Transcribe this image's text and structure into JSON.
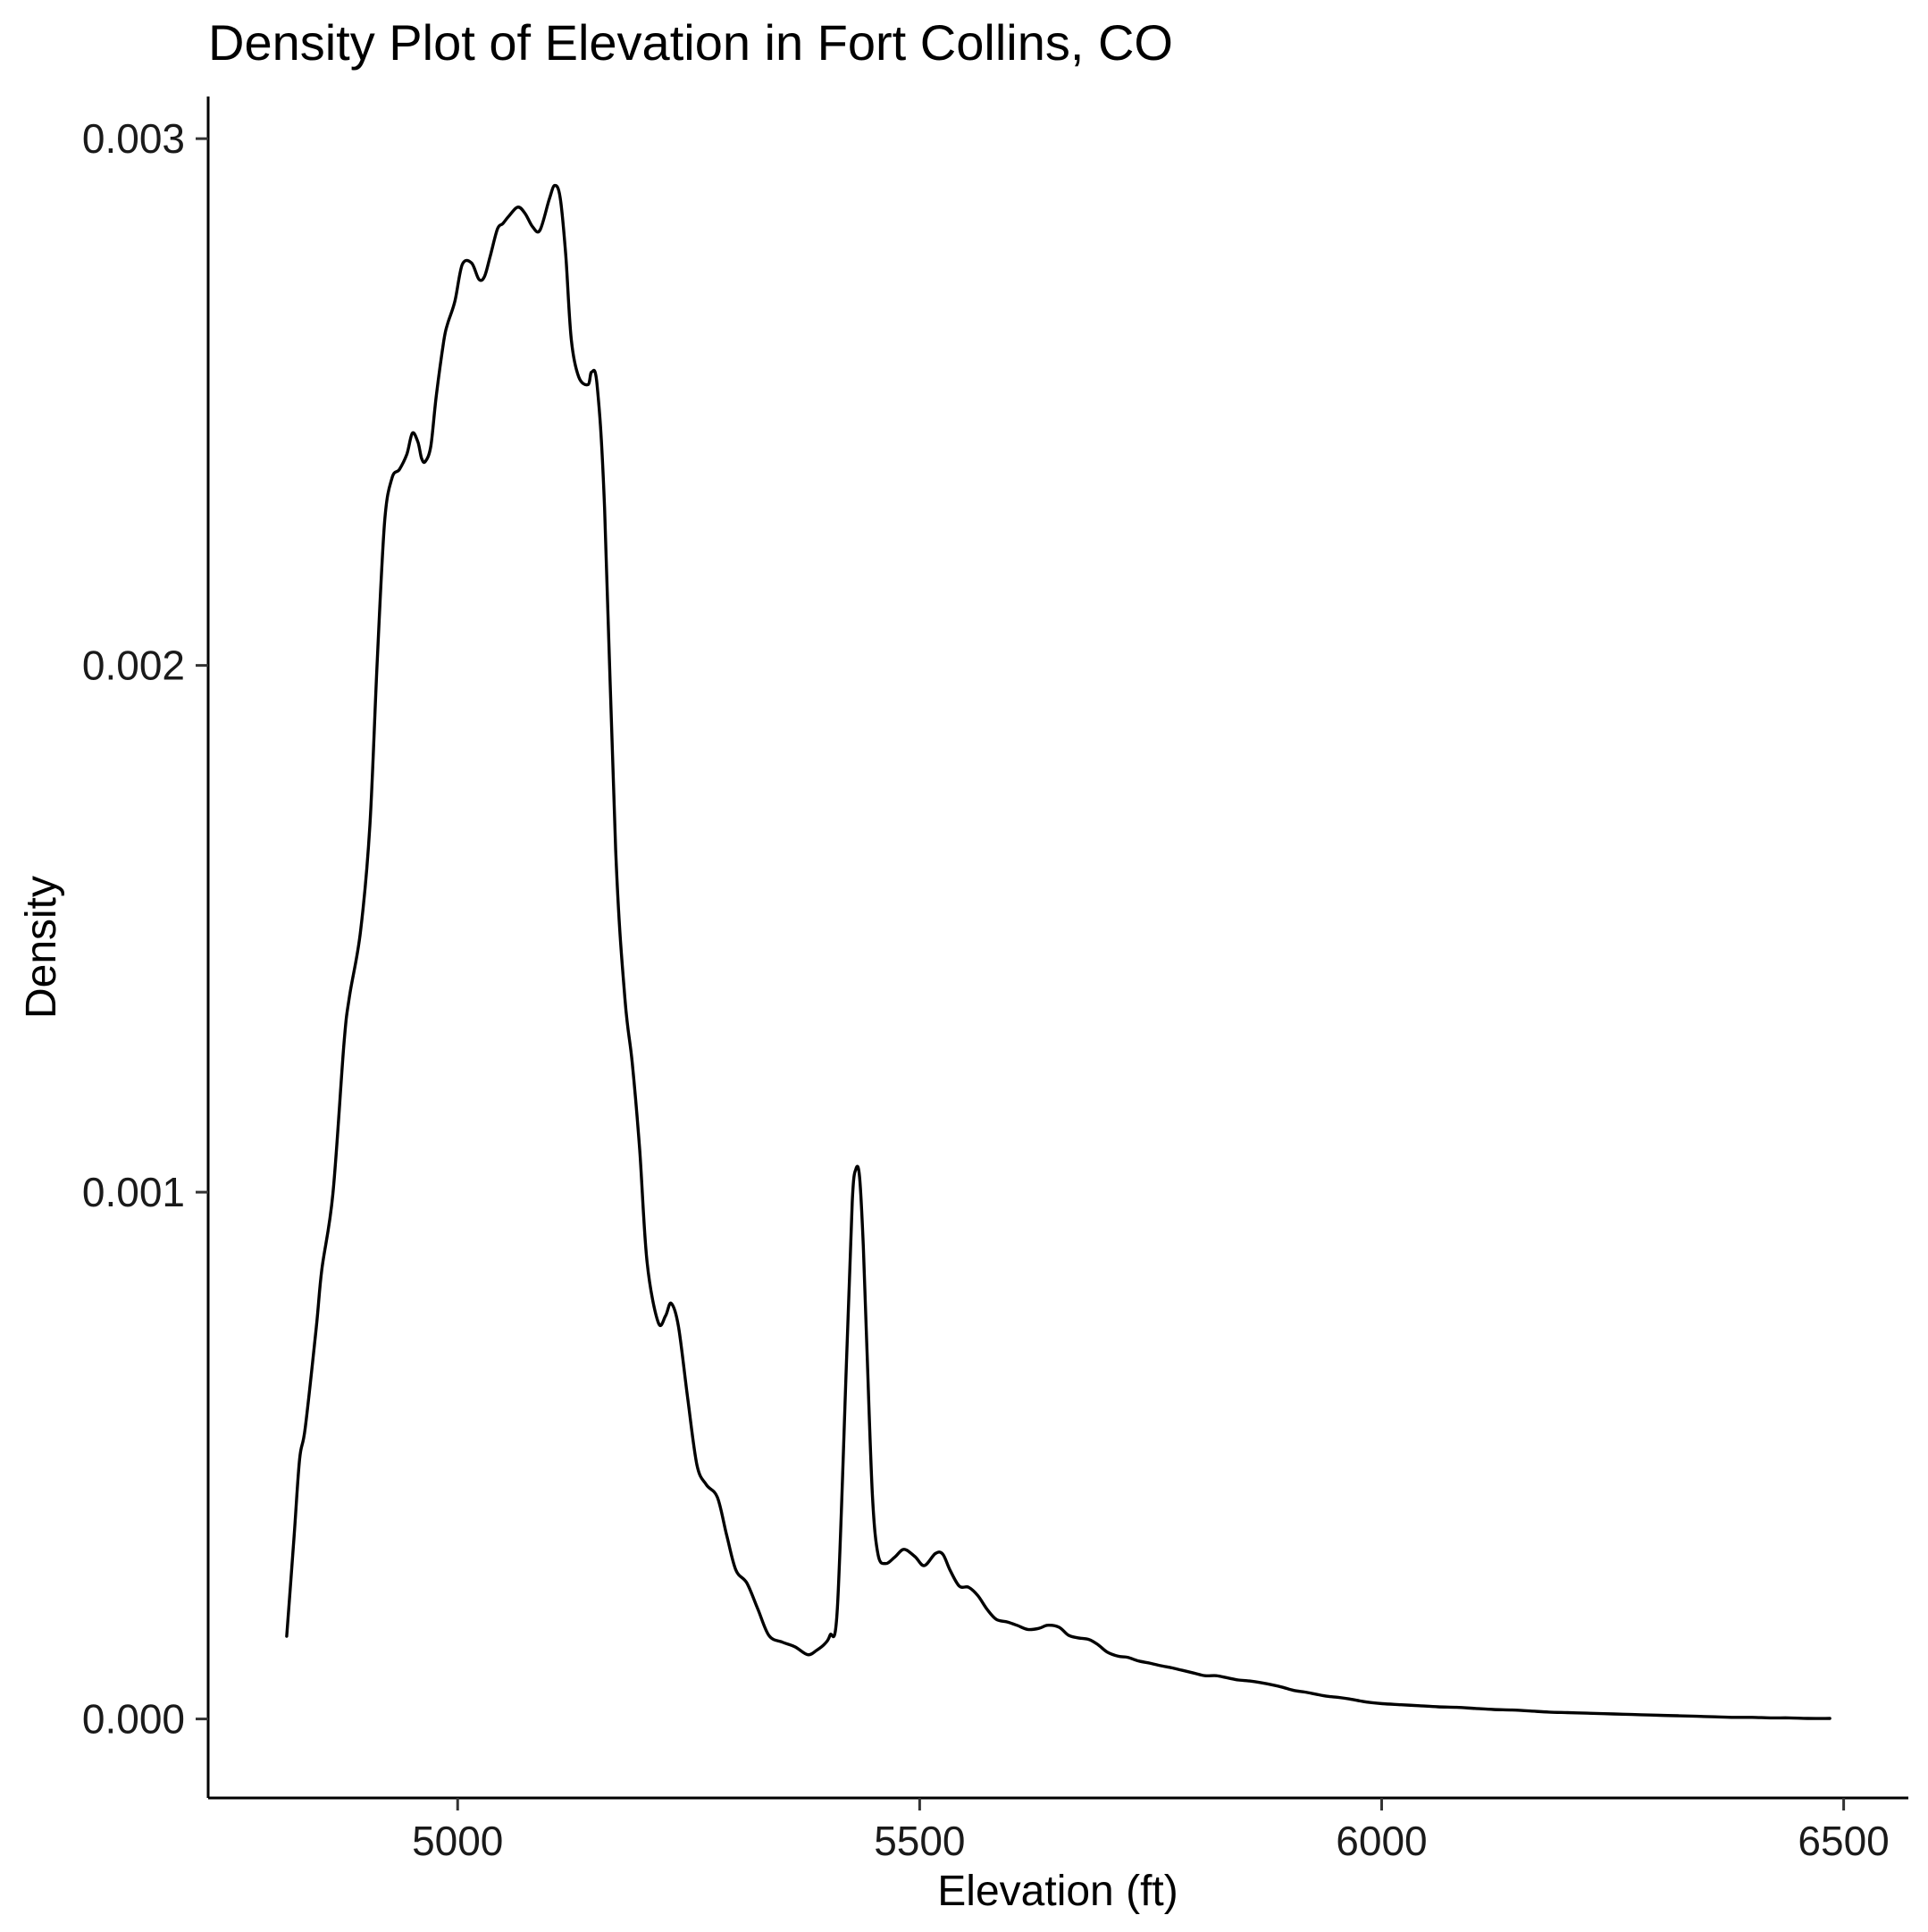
{
  "chart_data": {
    "type": "line",
    "title": "Density Plot of Elevation in Fort Collins, CO",
    "xlabel": "Elevation (ft)",
    "ylabel": "Density",
    "xlim": [
      4730,
      6570
    ],
    "ylim": [
      -0.00015,
      0.00308
    ],
    "x_ticks": [
      5000,
      5500,
      6000,
      6500
    ],
    "x_tick_labels": [
      "5000",
      "5500",
      "6000",
      "6500"
    ],
    "y_ticks": [
      0,
      0.001,
      0.002,
      0.003
    ],
    "y_tick_labels": [
      "0.000",
      "0.001",
      "0.002",
      "0.003"
    ],
    "grid": false,
    "legend": "none",
    "line_color": "#000000",
    "series": [
      {
        "x": [
          4815,
          4823,
          4829,
          4835,
          4847,
          4853,
          4865,
          4877,
          4883,
          4895,
          4905,
          4913,
          4921,
          4929,
          4937,
          4945,
          4951,
          4957,
          4961,
          4965,
          4971,
          4977,
          4985,
          4989,
          4997,
          5005,
          5015,
          5023,
          5029,
          5035,
          5043,
          5049,
          5055,
          5065,
          5073,
          5081,
          5089,
          5099,
          5105,
          5111,
          5117,
          5123,
          5131,
          5141,
          5145,
          5151,
          5159,
          5171,
          5181,
          5189,
          5197,
          5205,
          5217,
          5225,
          5231,
          5239,
          5249,
          5259,
          5269,
          5281,
          5291,
          5301,
          5313,
          5325,
          5337,
          5351,
          5365,
          5379,
          5389,
          5397,
          5403,
          5411,
          5421,
          5427,
          5431,
          5435,
          5439,
          5443,
          5449,
          5455,
          5463,
          5473,
          5483,
          5495,
          5505,
          5517,
          5525,
          5533,
          5543,
          5553,
          5563,
          5573,
          5583,
          5595,
          5605,
          5617,
          5629,
          5639,
          5651,
          5661,
          5671,
          5683,
          5693,
          5703,
          5715,
          5725,
          5737,
          5749,
          5761,
          5773,
          5785,
          5797,
          5809,
          5821,
          5833,
          5845,
          5857,
          5869,
          5881,
          5893,
          5905,
          5917,
          5929,
          5941,
          5953,
          5965,
          5977,
          5989,
          6001,
          6021,
          6041,
          6061,
          6081,
          6101,
          6121,
          6141,
          6161,
          6181,
          6201,
          6221,
          6241,
          6261,
          6281,
          6301,
          6321,
          6341,
          6361,
          6381,
          6401,
          6421,
          6441,
          6461,
          6485
        ],
        "y": [
          0.000157,
          0.000347,
          0.000494,
          0.000552,
          0.000743,
          0.000853,
          0.000997,
          0.001282,
          0.001372,
          0.001496,
          0.001696,
          0.00201,
          0.002273,
          0.002356,
          0.002372,
          0.002401,
          0.002441,
          0.002424,
          0.002393,
          0.002387,
          0.002417,
          0.002514,
          0.002616,
          0.002648,
          0.002691,
          0.002761,
          0.002764,
          0.002733,
          0.002738,
          0.002775,
          0.002828,
          0.002839,
          0.002852,
          0.00287,
          0.002858,
          0.002833,
          0.002826,
          0.002884,
          0.002911,
          0.002888,
          0.002778,
          0.002618,
          0.002548,
          0.002533,
          0.002557,
          0.002531,
          0.002299,
          0.00165,
          0.001369,
          0.001245,
          0.001081,
          0.000867,
          0.000753,
          0.000765,
          0.000789,
          0.000745,
          0.000608,
          0.000482,
          0.000445,
          0.000421,
          0.00035,
          0.000283,
          0.000258,
          0.000208,
          0.000158,
          0.000146,
          0.000137,
          0.000122,
          0.000131,
          0.000142,
          0.000159,
          0.000211,
          0.000689,
          0.000981,
          0.001044,
          0.001029,
          0.000898,
          0.000701,
          0.000421,
          0.000312,
          0.000295,
          0.000307,
          0.000322,
          0.000308,
          0.000291,
          0.000314,
          0.000313,
          0.000282,
          0.000252,
          0.00025,
          0.000234,
          0.000208,
          0.000189,
          0.000184,
          0.000178,
          0.00017,
          0.000172,
          0.000178,
          0.000174,
          0.000159,
          0.000154,
          0.000151,
          0.000141,
          0.000127,
          0.000119,
          0.000117,
          0.00011,
          0.000106,
          0.000101,
          9.7e-05,
          9.2e-05,
          8.7e-05,
          8.2e-05,
          8.2e-05,
          7.8e-05,
          7.4e-05,
          7.2e-05,
          6.9e-05,
          6.5e-05,
          6e-05,
          5.4e-05,
          5.1e-05,
          4.7e-05,
          4.3e-05,
          4.1e-05,
          3.8e-05,
          3.4e-05,
          3.1e-05,
          2.9e-05,
          2.7e-05,
          2.5e-05,
          2.3e-05,
          2.2e-05,
          2e-05,
          1.8e-05,
          1.7e-05,
          1.5e-05,
          1.3e-05,
          1.2e-05,
          1.1e-05,
          1e-05,
          9e-06,
          8e-06,
          7e-06,
          6e-06,
          5e-06,
          4e-06,
          3e-06,
          3e-06,
          2e-06,
          2e-06,
          1e-06,
          1e-06
        ]
      }
    ]
  }
}
